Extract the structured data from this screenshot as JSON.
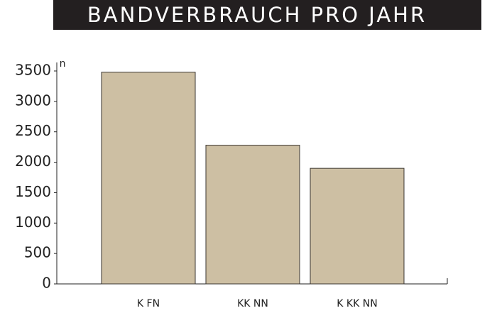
{
  "chart_data": {
    "type": "bar",
    "title": "BANDVERBRAUCH PRO JAHR",
    "y_label": "n",
    "categories": [
      "K FN",
      "KK NN",
      "K KK NN"
    ],
    "values": [
      3480,
      2280,
      1900
    ],
    "color": "#cdbfa3",
    "ylim": [
      0,
      3500
    ],
    "yticks": [
      0,
      500,
      1000,
      1500,
      2000,
      2500,
      3000,
      3500
    ],
    "grid": false
  }
}
